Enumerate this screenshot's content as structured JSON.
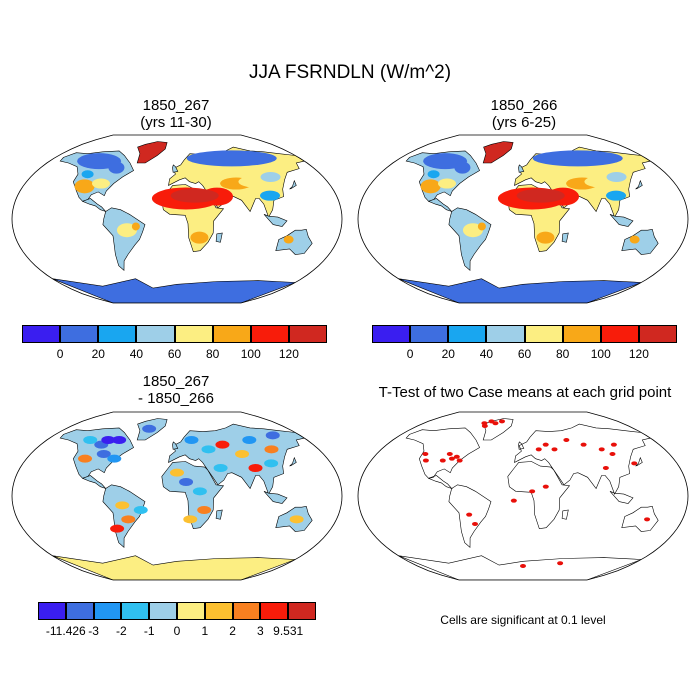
{
  "figure": {
    "title": "JJA FSRNDLN (W/m^2)"
  },
  "panels": [
    {
      "id": "p1",
      "title_line1": "1850_267",
      "title_line2": "(yrs 11-30)"
    },
    {
      "id": "p2",
      "title_line1": "1850_266",
      "title_line2": "(yrs 6-25)"
    },
    {
      "id": "p3",
      "title_line1": "1850_267",
      "title_line2": "- 1850_266"
    },
    {
      "id": "p4",
      "title_line1": "T-Test of two Case means at each grid point",
      "title_line2": ""
    }
  ],
  "colorbars": {
    "absolute": {
      "colors": [
        "#3a1ef0",
        "#3e6ee0",
        "#19a6f0",
        "#9ecfe8",
        "#fcee82",
        "#f8a818",
        "#f81c0a",
        "#d02820"
      ],
      "labels": [
        "0",
        "20",
        "40",
        "60",
        "80",
        "100",
        "120"
      ]
    },
    "difference": {
      "colors": [
        "#3a1ef0",
        "#3e6ee0",
        "#2196f3",
        "#30c0f0",
        "#9ecfe8",
        "#fcee82",
        "#fcc030",
        "#f88020",
        "#f81c0a",
        "#d02820"
      ],
      "labels": [
        "-11.426",
        "-3",
        "-2",
        "-1",
        "0",
        "1",
        "2",
        "3",
        "9.531"
      ]
    }
  },
  "significance_note": "Cells are significant at 0.1 level",
  "chart_data": {
    "type": "heatmap",
    "title": "JJA FSRNDLN (W/m^2)",
    "projection": "robinson",
    "panels": [
      {
        "name": "1850_267 (yrs 11-30)",
        "levels": [
          0,
          20,
          40,
          60,
          80,
          100,
          120
        ]
      },
      {
        "name": "1850_266 (yrs 6-25)",
        "levels": [
          0,
          20,
          40,
          60,
          80,
          100,
          120
        ]
      },
      {
        "name": "1850_267 - 1850_266",
        "levels": [
          -11.426,
          -3,
          -2,
          -1,
          0,
          1,
          2,
          3,
          9.531
        ]
      },
      {
        "name": "T-Test of two Case means at each grid point",
        "significance_level": 0.1
      }
    ]
  }
}
